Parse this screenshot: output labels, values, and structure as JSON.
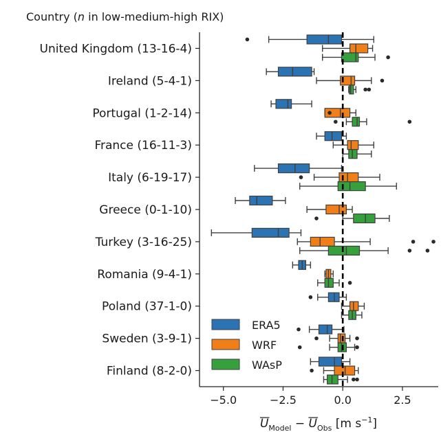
{
  "chart_data": {
    "type": "boxplot-horizontal",
    "ytitle_html": "Country (<tspan font-style='italic'>n</tspan> in low-medium-high RIX)",
    "xlabel": "U_Model − U_Obs [m s⁻¹]",
    "xlim": [
      -6.0,
      4.0
    ],
    "xticks": [
      -5.0,
      -2.5,
      0.0,
      2.5
    ],
    "xtick_labels": [
      "−5.0",
      "−2.5",
      "0.0",
      "2.5"
    ],
    "reference_line_x": 0,
    "legend_position": "lower-left",
    "series": [
      {
        "name": "ERA5",
        "color": "#2b73b2"
      },
      {
        "name": "WRF",
        "color": "#f07f1a"
      },
      {
        "name": "WAsP",
        "color": "#35a03c"
      }
    ],
    "categories": [
      {
        "label": "United Kingdom (13-16-4)",
        "boxes": [
          {
            "whislo": -3.1,
            "q1": -1.5,
            "med": -0.6,
            "q3": -0.05,
            "whishi": 1.3,
            "fliers": [
              -4.0
            ]
          },
          {
            "whislo": -0.85,
            "q1": 0.3,
            "med": 0.55,
            "q3": 1.05,
            "whishi": 1.25,
            "fliers": []
          },
          {
            "whislo": -0.85,
            "q1": -0.05,
            "med": 0.55,
            "q3": 0.65,
            "whishi": 1.35,
            "fliers": [
              1.9
            ]
          }
        ]
      },
      {
        "label": "Ireland (5-4-1)",
        "boxes": [
          {
            "whislo": -3.2,
            "q1": -2.7,
            "med": -2.1,
            "q3": -1.3,
            "whishi": -1.2,
            "fliers": []
          },
          {
            "whislo": -1.1,
            "q1": -0.1,
            "med": 0.35,
            "q3": 0.5,
            "whishi": 1.2,
            "fliers": [
              1.65
            ]
          },
          {
            "whislo": 0.25,
            "q1": 0.28,
            "med": 0.33,
            "q3": 0.45,
            "whishi": 0.55,
            "fliers": [
              0.95,
              1.1
            ]
          }
        ]
      },
      {
        "label": "Portugal (1-2-14)",
        "boxes": [
          {
            "whislo": -3.0,
            "q1": -2.8,
            "med": -2.3,
            "q3": -2.15,
            "whishi": -1.3,
            "fliers": []
          },
          {
            "whislo": -0.75,
            "q1": -0.75,
            "med": -0.1,
            "q3": 0.3,
            "whishi": 0.55,
            "fliers": [
              -0.55
            ]
          },
          {
            "whislo": 0.15,
            "q1": 0.4,
            "med": 0.6,
            "q3": 0.7,
            "whishi": 1.0,
            "fliers": [
              -0.3,
              2.8
            ]
          }
        ]
      },
      {
        "label": "France (16-11-3)",
        "boxes": [
          {
            "whislo": -1.1,
            "q1": -0.75,
            "med": -0.45,
            "q3": -0.05,
            "whishi": 0.15,
            "fliers": []
          },
          {
            "whislo": -0.4,
            "q1": 0.2,
            "med": 0.35,
            "q3": 0.65,
            "whishi": 1.3,
            "fliers": []
          },
          {
            "whislo": 0.0,
            "q1": 0.25,
            "med": 0.4,
            "q3": 0.6,
            "whishi": 1.2,
            "fliers": []
          }
        ]
      },
      {
        "label": "Italy (6-19-17)",
        "boxes": [
          {
            "whislo": -3.7,
            "q1": -2.7,
            "med": -2.0,
            "q3": -1.4,
            "whishi": -0.05,
            "fliers": []
          },
          {
            "whislo": -1.2,
            "q1": -0.15,
            "med": 0.2,
            "q3": 0.65,
            "whishi": 1.55,
            "fliers": [
              -1.75
            ]
          },
          {
            "whislo": -1.8,
            "q1": -0.2,
            "med": 0.3,
            "q3": 0.95,
            "whishi": 2.25,
            "fliers": []
          }
        ]
      },
      {
        "label": "Greece (0-1-10)",
        "boxes": [
          {
            "whislo": -4.5,
            "q1": -3.9,
            "med": -3.6,
            "q3": -2.95,
            "whishi": -2.4,
            "fliers": []
          },
          {
            "whislo": -1.5,
            "q1": -0.7,
            "med": -0.15,
            "q3": 0.15,
            "whishi": 0.4,
            "fliers": []
          },
          {
            "whislo": 0.0,
            "q1": 0.45,
            "med": 0.95,
            "q3": 1.35,
            "whishi": 1.95,
            "fliers": [
              -1.1
            ]
          }
        ]
      },
      {
        "label": "Turkey (3-16-25)",
        "boxes": [
          {
            "whislo": -5.5,
            "q1": -3.8,
            "med": -2.7,
            "q3": -2.25,
            "whishi": -1.75,
            "fliers": []
          },
          {
            "whislo": -1.9,
            "q1": -1.35,
            "med": -0.95,
            "q3": -0.35,
            "whishi": 1.15,
            "fliers": [
              2.95,
              3.8
            ]
          },
          {
            "whislo": -1.8,
            "q1": -0.6,
            "med": 0.15,
            "q3": 0.7,
            "whishi": 1.9,
            "fliers": [
              2.8,
              3.55
            ]
          }
        ]
      },
      {
        "label": "Romania (9-4-1)",
        "boxes": [
          {
            "whislo": -2.1,
            "q1": -1.85,
            "med": -1.7,
            "q3": -1.55,
            "whishi": -1.35,
            "fliers": []
          },
          {
            "whislo": -0.75,
            "q1": -0.7,
            "med": -0.6,
            "q3": -0.5,
            "whishi": -0.4,
            "fliers": []
          },
          {
            "whislo": -1.05,
            "q1": -0.75,
            "med": -0.6,
            "q3": -0.4,
            "whishi": -0.15,
            "fliers": [
              0.3
            ]
          }
        ]
      },
      {
        "label": "Poland (37-1-0)",
        "boxes": [
          {
            "whislo": -1.05,
            "q1": -0.6,
            "med": -0.35,
            "q3": -0.15,
            "whishi": 0.15,
            "fliers": [
              -1.35
            ]
          },
          {
            "whislo": -0.05,
            "q1": 0.3,
            "med": 0.45,
            "q3": 0.65,
            "whishi": 0.9,
            "fliers": []
          },
          {
            "whislo": -0.05,
            "q1": 0.25,
            "med": 0.4,
            "q3": 0.55,
            "whishi": 0.8,
            "fliers": []
          }
        ]
      },
      {
        "label": "Sweden (3-9-1)",
        "boxes": [
          {
            "whislo": -1.4,
            "q1": -1.0,
            "med": -0.65,
            "q3": -0.45,
            "whishi": 0.05,
            "fliers": [
              -1.85
            ]
          },
          {
            "whislo": -0.55,
            "q1": -0.2,
            "med": -0.1,
            "q3": 0.1,
            "whishi": 0.3,
            "fliers": [
              -1.1,
              0.6
            ]
          },
          {
            "whislo": -0.55,
            "q1": -0.2,
            "med": -0.05,
            "q3": 0.15,
            "whishi": 0.5,
            "fliers": [
              -1.8,
              0.6
            ]
          }
        ]
      },
      {
        "label": "Finland (8-2-0)",
        "boxes": [
          {
            "whislo": -1.35,
            "q1": -1.0,
            "med": -0.35,
            "q3": -0.05,
            "whishi": 0.3,
            "fliers": []
          },
          {
            "whislo": -0.8,
            "q1": -0.35,
            "med": 0.1,
            "q3": 0.5,
            "whishi": 0.65,
            "fliers": [
              -1.3
            ]
          },
          {
            "whislo": -0.8,
            "q1": -0.65,
            "med": -0.45,
            "q3": -0.2,
            "whishi": 0.2,
            "fliers": [
              0.45,
              0.6
            ]
          }
        ]
      }
    ]
  }
}
